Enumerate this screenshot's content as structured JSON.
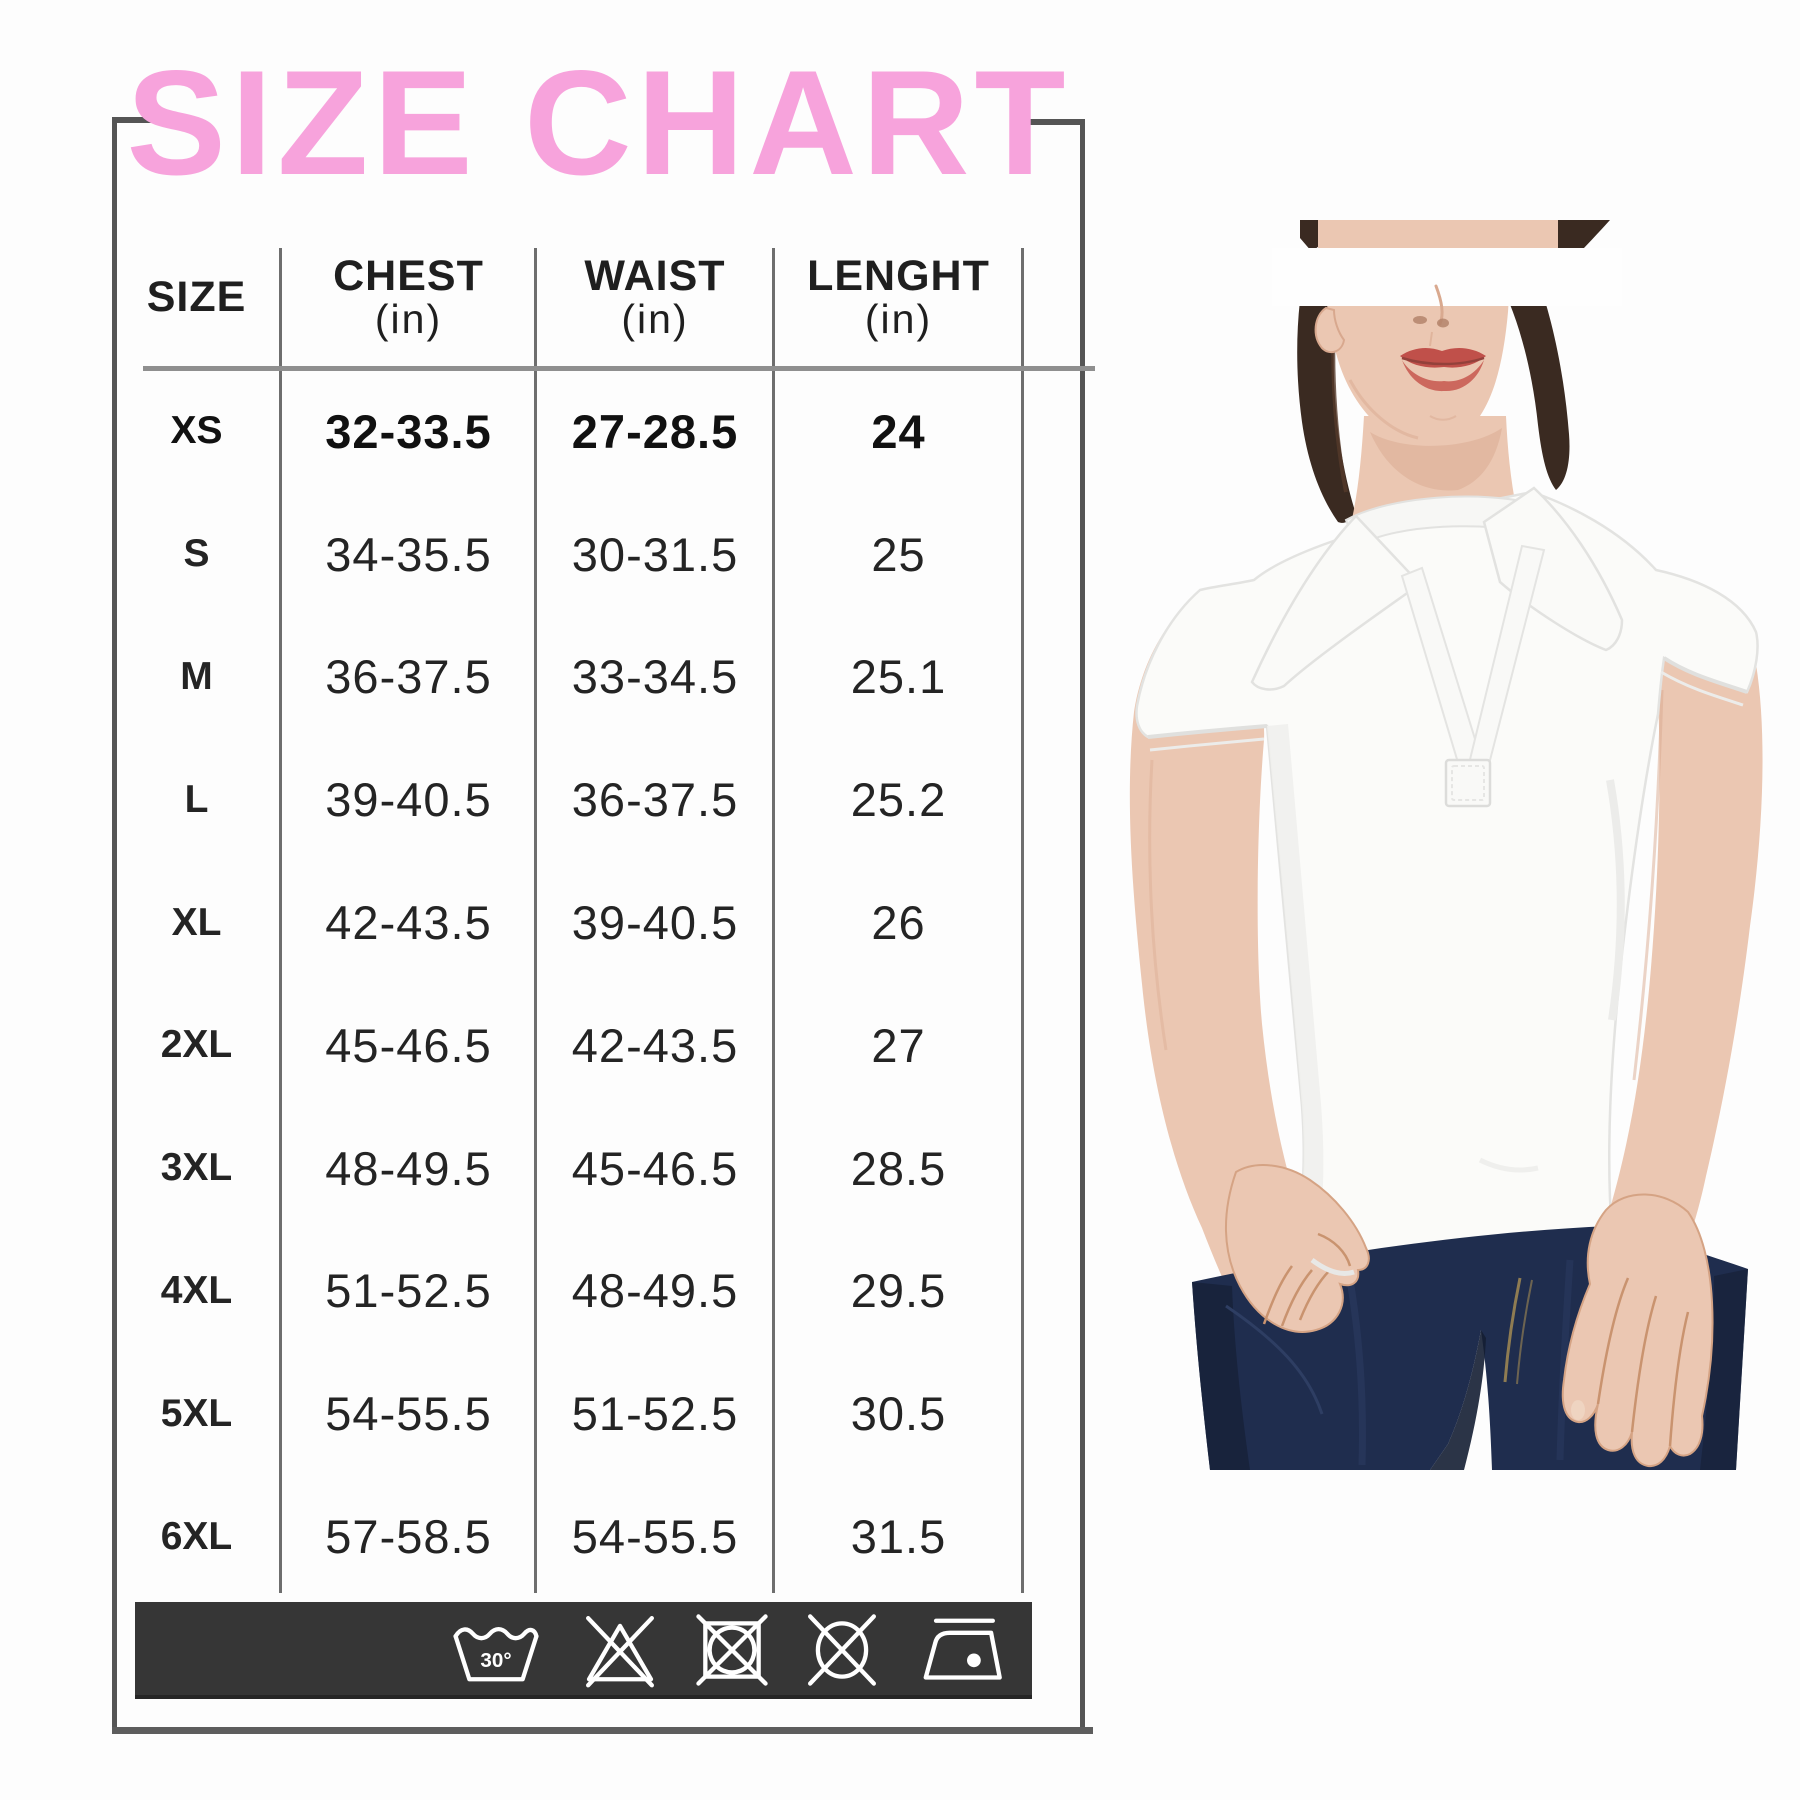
{
  "title": "SIZE CHART",
  "table": {
    "columns": [
      "SIZE",
      "CHEST",
      "WAIST",
      "LENGHT"
    ],
    "unit": "(in)",
    "rows": [
      {
        "size": "XS",
        "chest": "32-33.5",
        "waist": "27-28.5",
        "length": "24",
        "emphasis": true
      },
      {
        "size": "S",
        "chest": "34-35.5",
        "waist": "30-31.5",
        "length": "25",
        "emphasis": false
      },
      {
        "size": "M",
        "chest": "36-37.5",
        "waist": "33-34.5",
        "length": "25.1",
        "emphasis": false
      },
      {
        "size": "L",
        "chest": "39-40.5",
        "waist": "36-37.5",
        "length": "25.2",
        "emphasis": false
      },
      {
        "size": "XL",
        "chest": "42-43.5",
        "waist": "39-40.5",
        "length": "26",
        "emphasis": false
      },
      {
        "size": "2XL",
        "chest": "45-46.5",
        "waist": "42-43.5",
        "length": "27",
        "emphasis": false
      },
      {
        "size": "3XL",
        "chest": "48-49.5",
        "waist": "45-46.5",
        "length": "28.5",
        "emphasis": false
      },
      {
        "size": "4XL",
        "chest": "51-52.5",
        "waist": "48-49.5",
        "length": "29.5",
        "emphasis": false
      },
      {
        "size": "5XL",
        "chest": "54-55.5",
        "waist": "51-52.5",
        "length": "30.5",
        "emphasis": false
      },
      {
        "size": "6XL",
        "chest": "57-58.5",
        "waist": "54-55.5",
        "length": "31.5",
        "emphasis": false
      }
    ]
  },
  "care_bar": {
    "wash_temp_label": "30°",
    "icons": [
      {
        "name": "wash-30-icon"
      },
      {
        "name": "do-not-bleach-icon"
      },
      {
        "name": "do-not-tumble-dry-icon"
      },
      {
        "name": "do-not-dry-clean-icon"
      },
      {
        "name": "iron-icon"
      }
    ]
  },
  "photo": {
    "subject": "woman wearing white v-neck collared polo shirt and dark blue jeans"
  },
  "colors": {
    "title_pink": "#F7A3DC",
    "frame_gray": "#555555",
    "text_dark": "#1F1F1F",
    "care_bar_bg": "#363636",
    "jeans_navy": "#1F2D4E",
    "skin": "#EBC7B2",
    "skin_shadow": "#D9A98F",
    "hair_brown": "#3A2A21",
    "lips_red": "#C0504A",
    "shirt_white": "#FBFBF9"
  }
}
